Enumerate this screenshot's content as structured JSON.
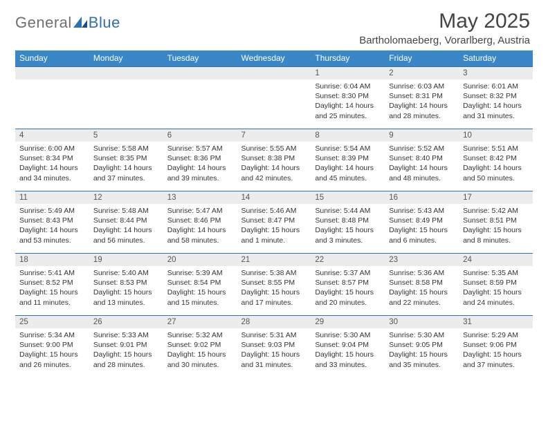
{
  "logo": {
    "part1": "General",
    "part2": "Blue"
  },
  "title": "May 2025",
  "location": "Bartholomaeberg, Vorarlberg, Austria",
  "colors": {
    "header_bg": "#3a87c8",
    "header_text": "#ffffff",
    "daynum_bg": "#ececec",
    "rule": "#2f6fb4",
    "logo_gray": "#6f6f6f",
    "logo_blue": "#2f6fb4",
    "body_text": "#333333"
  },
  "columns": [
    "Sunday",
    "Monday",
    "Tuesday",
    "Wednesday",
    "Thursday",
    "Friday",
    "Saturday"
  ],
  "weeks": [
    [
      {
        "blank": true
      },
      {
        "blank": true
      },
      {
        "blank": true
      },
      {
        "blank": true
      },
      {
        "num": "1",
        "sunrise": "Sunrise: 6:04 AM",
        "sunset": "Sunset: 8:30 PM",
        "day1": "Daylight: 14 hours",
        "day2": "and 25 minutes."
      },
      {
        "num": "2",
        "sunrise": "Sunrise: 6:03 AM",
        "sunset": "Sunset: 8:31 PM",
        "day1": "Daylight: 14 hours",
        "day2": "and 28 minutes."
      },
      {
        "num": "3",
        "sunrise": "Sunrise: 6:01 AM",
        "sunset": "Sunset: 8:32 PM",
        "day1": "Daylight: 14 hours",
        "day2": "and 31 minutes."
      }
    ],
    [
      {
        "num": "4",
        "sunrise": "Sunrise: 6:00 AM",
        "sunset": "Sunset: 8:34 PM",
        "day1": "Daylight: 14 hours",
        "day2": "and 34 minutes."
      },
      {
        "num": "5",
        "sunrise": "Sunrise: 5:58 AM",
        "sunset": "Sunset: 8:35 PM",
        "day1": "Daylight: 14 hours",
        "day2": "and 37 minutes."
      },
      {
        "num": "6",
        "sunrise": "Sunrise: 5:57 AM",
        "sunset": "Sunset: 8:36 PM",
        "day1": "Daylight: 14 hours",
        "day2": "and 39 minutes."
      },
      {
        "num": "7",
        "sunrise": "Sunrise: 5:55 AM",
        "sunset": "Sunset: 8:38 PM",
        "day1": "Daylight: 14 hours",
        "day2": "and 42 minutes."
      },
      {
        "num": "8",
        "sunrise": "Sunrise: 5:54 AM",
        "sunset": "Sunset: 8:39 PM",
        "day1": "Daylight: 14 hours",
        "day2": "and 45 minutes."
      },
      {
        "num": "9",
        "sunrise": "Sunrise: 5:52 AM",
        "sunset": "Sunset: 8:40 PM",
        "day1": "Daylight: 14 hours",
        "day2": "and 48 minutes."
      },
      {
        "num": "10",
        "sunrise": "Sunrise: 5:51 AM",
        "sunset": "Sunset: 8:42 PM",
        "day1": "Daylight: 14 hours",
        "day2": "and 50 minutes."
      }
    ],
    [
      {
        "num": "11",
        "sunrise": "Sunrise: 5:49 AM",
        "sunset": "Sunset: 8:43 PM",
        "day1": "Daylight: 14 hours",
        "day2": "and 53 minutes."
      },
      {
        "num": "12",
        "sunrise": "Sunrise: 5:48 AM",
        "sunset": "Sunset: 8:44 PM",
        "day1": "Daylight: 14 hours",
        "day2": "and 56 minutes."
      },
      {
        "num": "13",
        "sunrise": "Sunrise: 5:47 AM",
        "sunset": "Sunset: 8:46 PM",
        "day1": "Daylight: 14 hours",
        "day2": "and 58 minutes."
      },
      {
        "num": "14",
        "sunrise": "Sunrise: 5:46 AM",
        "sunset": "Sunset: 8:47 PM",
        "day1": "Daylight: 15 hours",
        "day2": "and 1 minute."
      },
      {
        "num": "15",
        "sunrise": "Sunrise: 5:44 AM",
        "sunset": "Sunset: 8:48 PM",
        "day1": "Daylight: 15 hours",
        "day2": "and 3 minutes."
      },
      {
        "num": "16",
        "sunrise": "Sunrise: 5:43 AM",
        "sunset": "Sunset: 8:49 PM",
        "day1": "Daylight: 15 hours",
        "day2": "and 6 minutes."
      },
      {
        "num": "17",
        "sunrise": "Sunrise: 5:42 AM",
        "sunset": "Sunset: 8:51 PM",
        "day1": "Daylight: 15 hours",
        "day2": "and 8 minutes."
      }
    ],
    [
      {
        "num": "18",
        "sunrise": "Sunrise: 5:41 AM",
        "sunset": "Sunset: 8:52 PM",
        "day1": "Daylight: 15 hours",
        "day2": "and 11 minutes."
      },
      {
        "num": "19",
        "sunrise": "Sunrise: 5:40 AM",
        "sunset": "Sunset: 8:53 PM",
        "day1": "Daylight: 15 hours",
        "day2": "and 13 minutes."
      },
      {
        "num": "20",
        "sunrise": "Sunrise: 5:39 AM",
        "sunset": "Sunset: 8:54 PM",
        "day1": "Daylight: 15 hours",
        "day2": "and 15 minutes."
      },
      {
        "num": "21",
        "sunrise": "Sunrise: 5:38 AM",
        "sunset": "Sunset: 8:55 PM",
        "day1": "Daylight: 15 hours",
        "day2": "and 17 minutes."
      },
      {
        "num": "22",
        "sunrise": "Sunrise: 5:37 AM",
        "sunset": "Sunset: 8:57 PM",
        "day1": "Daylight: 15 hours",
        "day2": "and 20 minutes."
      },
      {
        "num": "23",
        "sunrise": "Sunrise: 5:36 AM",
        "sunset": "Sunset: 8:58 PM",
        "day1": "Daylight: 15 hours",
        "day2": "and 22 minutes."
      },
      {
        "num": "24",
        "sunrise": "Sunrise: 5:35 AM",
        "sunset": "Sunset: 8:59 PM",
        "day1": "Daylight: 15 hours",
        "day2": "and 24 minutes."
      }
    ],
    [
      {
        "num": "25",
        "sunrise": "Sunrise: 5:34 AM",
        "sunset": "Sunset: 9:00 PM",
        "day1": "Daylight: 15 hours",
        "day2": "and 26 minutes."
      },
      {
        "num": "26",
        "sunrise": "Sunrise: 5:33 AM",
        "sunset": "Sunset: 9:01 PM",
        "day1": "Daylight: 15 hours",
        "day2": "and 28 minutes."
      },
      {
        "num": "27",
        "sunrise": "Sunrise: 5:32 AM",
        "sunset": "Sunset: 9:02 PM",
        "day1": "Daylight: 15 hours",
        "day2": "and 30 minutes."
      },
      {
        "num": "28",
        "sunrise": "Sunrise: 5:31 AM",
        "sunset": "Sunset: 9:03 PM",
        "day1": "Daylight: 15 hours",
        "day2": "and 31 minutes."
      },
      {
        "num": "29",
        "sunrise": "Sunrise: 5:30 AM",
        "sunset": "Sunset: 9:04 PM",
        "day1": "Daylight: 15 hours",
        "day2": "and 33 minutes."
      },
      {
        "num": "30",
        "sunrise": "Sunrise: 5:30 AM",
        "sunset": "Sunset: 9:05 PM",
        "day1": "Daylight: 15 hours",
        "day2": "and 35 minutes."
      },
      {
        "num": "31",
        "sunrise": "Sunrise: 5:29 AM",
        "sunset": "Sunset: 9:06 PM",
        "day1": "Daylight: 15 hours",
        "day2": "and 37 minutes."
      }
    ]
  ]
}
